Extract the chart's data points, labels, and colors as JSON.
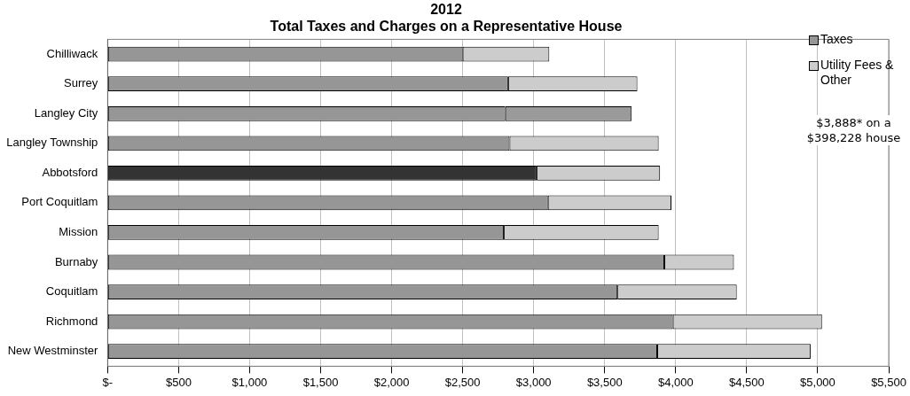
{
  "chart_data": {
    "type": "bar",
    "orientation": "horizontal",
    "stacked": true,
    "title": "2012",
    "subtitle": "Total Taxes and Charges on a Representative House",
    "categories": [
      "Chilliwack",
      "Surrey",
      "Langley City",
      "Langley Township",
      "Abbotsford",
      "Port Coquitlam",
      "Mission",
      "Burnaby",
      "Coquitlam",
      "Richmond",
      "New Westminster"
    ],
    "series": [
      {
        "name": "Taxes",
        "color": "#969696",
        "colors": [
          "#969696",
          "#969696",
          "#969696",
          "#969696",
          "#333333",
          "#969696",
          "#969696",
          "#969696",
          "#969696",
          "#969696",
          "#969696"
        ],
        "values": [
          2500,
          2820,
          2800,
          2830,
          3020,
          3100,
          2790,
          3920,
          3590,
          3980,
          3870
        ]
      },
      {
        "name": "Utility Fees & Other",
        "color": "#cccccc",
        "colors": [
          "#cccccc",
          "#cccccc",
          "#9a9a9a",
          "#cccccc",
          "#cccccc",
          "#cccccc",
          "#cccccc",
          "#cccccc",
          "#cccccc",
          "#cccccc",
          "#cccccc"
        ],
        "values": [
          610,
          910,
          890,
          1050,
          870,
          870,
          1090,
          490,
          840,
          1050,
          1080
        ]
      }
    ],
    "xlim": [
      0,
      5500
    ],
    "xticks": [
      {
        "value": 0,
        "label": "$-"
      },
      {
        "value": 500,
        "label": "$500"
      },
      {
        "value": 1000,
        "label": "$1,000"
      },
      {
        "value": 1500,
        "label": "$1,500"
      },
      {
        "value": 2000,
        "label": "$2,000"
      },
      {
        "value": 2500,
        "label": "$2,500"
      },
      {
        "value": 3000,
        "label": "$3,000"
      },
      {
        "value": 3500,
        "label": "$3,500"
      },
      {
        "value": 4000,
        "label": "$4,000"
      },
      {
        "value": 4500,
        "label": "$4,500"
      },
      {
        "value": 5000,
        "label": "$5,000"
      },
      {
        "value": 5500,
        "label": "$5,500"
      }
    ],
    "grid": "x",
    "legend": "top right",
    "annotations": [
      "$3,888* on a $398,228 house"
    ]
  }
}
